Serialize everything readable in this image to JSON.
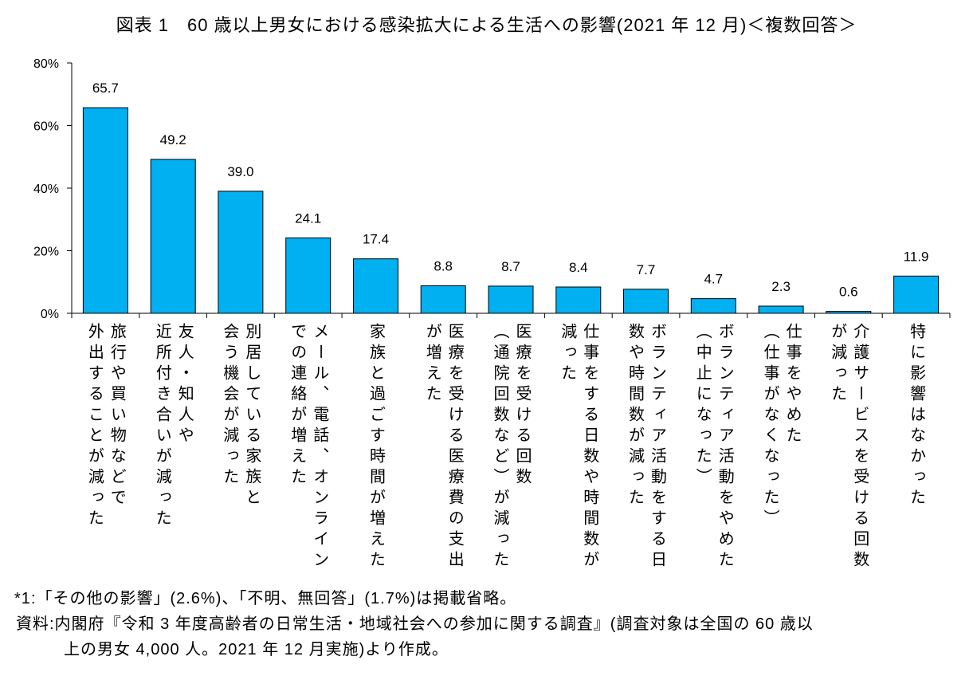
{
  "chart_data": {
    "type": "bar",
    "title": "図表 1　60 歳以上男女における感染拡大による生活への影響(2021 年 12 月)＜複数回答＞",
    "xlabel": "",
    "ylabel": "",
    "ylim": [
      0,
      80
    ],
    "yticks": [
      0,
      20,
      40,
      60,
      80
    ],
    "ytick_labels": [
      "0%",
      "20%",
      "40%",
      "60%",
      "80%"
    ],
    "grid": false,
    "bar_color": "#00B0F0",
    "categories": [
      [
        "旅行や買い物などで",
        "外出することが減った"
      ],
      [
        "友人・知人や",
        "近所付き合いが減った"
      ],
      [
        "別居している家族と",
        "会う機会が減った"
      ],
      [
        "メール、電話、オンライン",
        "での連絡が増えた"
      ],
      [
        "家族と過ごす時間が増えた"
      ],
      [
        "医療を受ける医療費の支出",
        "が増えた"
      ],
      [
        "医療を受ける回数",
        "（通院回数など）が減った"
      ],
      [
        "仕事をする日数や時間数が",
        "減った"
      ],
      [
        "ボランティア活動をする日",
        "数や時間数が減った"
      ],
      [
        "ボランティア活動をやめた",
        "（中止になった）"
      ],
      [
        "仕事をやめた",
        "（仕事がなくなった）"
      ],
      [
        "介護サービスを受ける回数",
        "が減った"
      ],
      [
        "特に影響はなかった"
      ]
    ],
    "values": [
      65.7,
      49.2,
      39.0,
      24.1,
      17.4,
      8.8,
      8.7,
      8.4,
      7.7,
      4.7,
      2.3,
      0.6,
      11.9
    ],
    "value_labels": [
      "65.7",
      "49.2",
      "39.0",
      "24.1",
      "17.4",
      "8.8",
      "8.7",
      "8.4",
      "7.7",
      "4.7",
      "2.3",
      "0.6",
      "11.9"
    ]
  },
  "notes": {
    "note1": "*1:「その他の影響」(2.6%)、「不明、無回答」(1.7%)は掲載省略。",
    "source_line1": "資料:内閣府『令和 3 年度高齢者の日常生活・地域社会への参加に関する調査』(調査対象は全国の 60 歳以",
    "source_line2": "上の男女 4,000 人。2021 年 12 月実施)より作成。"
  }
}
